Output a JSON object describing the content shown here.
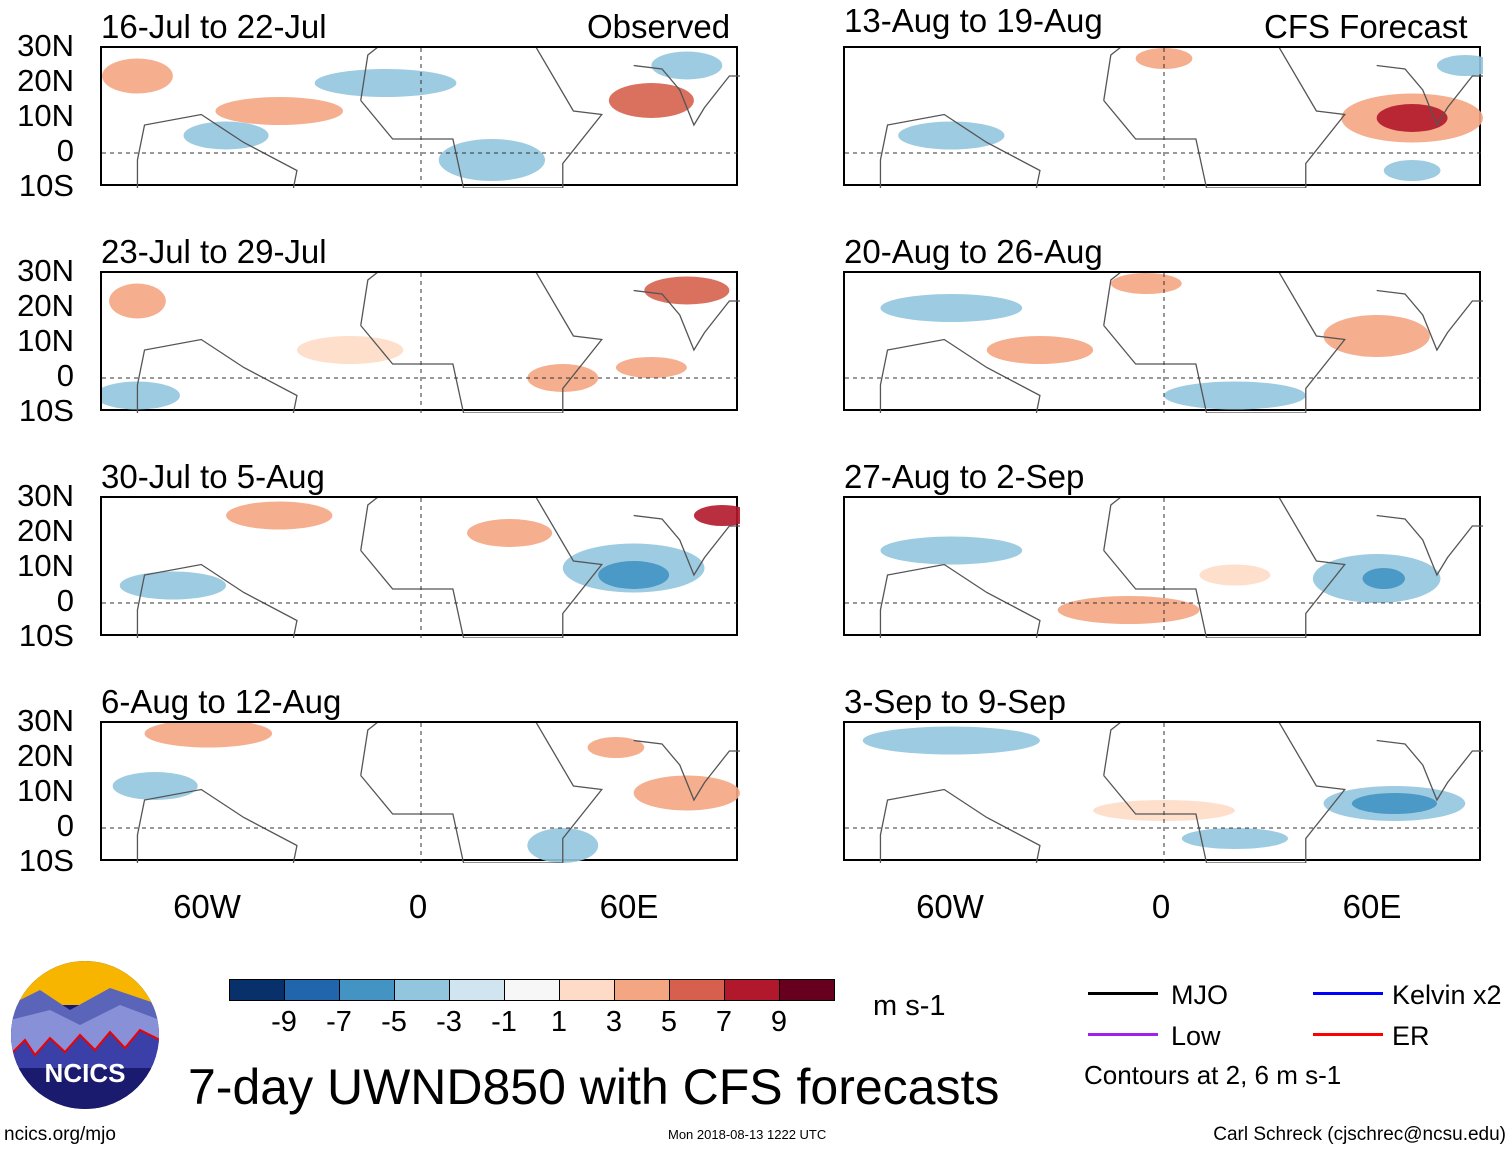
{
  "header": {
    "observed_label": "Observed",
    "forecast_label": "CFS Forecast"
  },
  "panels": {
    "left": [
      "16-Jul to 22-Jul",
      "23-Jul to 29-Jul",
      "30-Jul to 5-Aug",
      "6-Aug to 12-Aug"
    ],
    "right": [
      "13-Aug to 19-Aug",
      "20-Aug to 26-Aug",
      "27-Aug to 2-Sep",
      "3-Sep to 9-Sep"
    ]
  },
  "axes": {
    "lat_labels": [
      "30N",
      "20N",
      "10N",
      "0",
      "10S"
    ],
    "lon_labels": [
      "60W",
      "0",
      "60E"
    ]
  },
  "colorbar": {
    "colors": [
      "#08306b",
      "#2166ac",
      "#4393c3",
      "#92c5de",
      "#d1e5f0",
      "#f7f7f7",
      "#fddbc7",
      "#f4a582",
      "#d6604d",
      "#b2182b",
      "#67001f"
    ],
    "ticks": [
      "-9",
      "-7",
      "-5",
      "-3",
      "-1",
      "1",
      "3",
      "5",
      "7",
      "9"
    ],
    "units": "m s-1"
  },
  "legend": {
    "items": [
      {
        "label": "MJO",
        "color": "#000000"
      },
      {
        "label": "Kelvin x2",
        "color": "#0000ff"
      },
      {
        "label": "Low",
        "color": "#a020f0"
      },
      {
        "label": "ER",
        "color": "#ff0000"
      }
    ],
    "note": "Contours at 2, 6 m s-1"
  },
  "footer": {
    "title": "7-day UWND850 with CFS forecasts",
    "logo_text": "NCICS",
    "url": "ncics.org/mjo",
    "timestamp": "Mon 2018-08-13 1222 UTC",
    "author": "Carl Schreck (cjschrec@ncsu.edu)"
  },
  "chart_data": {
    "type": "heatmap",
    "variable": "850-hPa zonal wind anomaly",
    "units": "m s-1",
    "levels": [
      -9,
      -7,
      -5,
      -3,
      -1,
      1,
      3,
      5,
      7,
      9
    ],
    "lat_range": [
      -10,
      30
    ],
    "lon_range": [
      -90,
      90
    ],
    "contour_levels": [
      2,
      6
    ]
  }
}
